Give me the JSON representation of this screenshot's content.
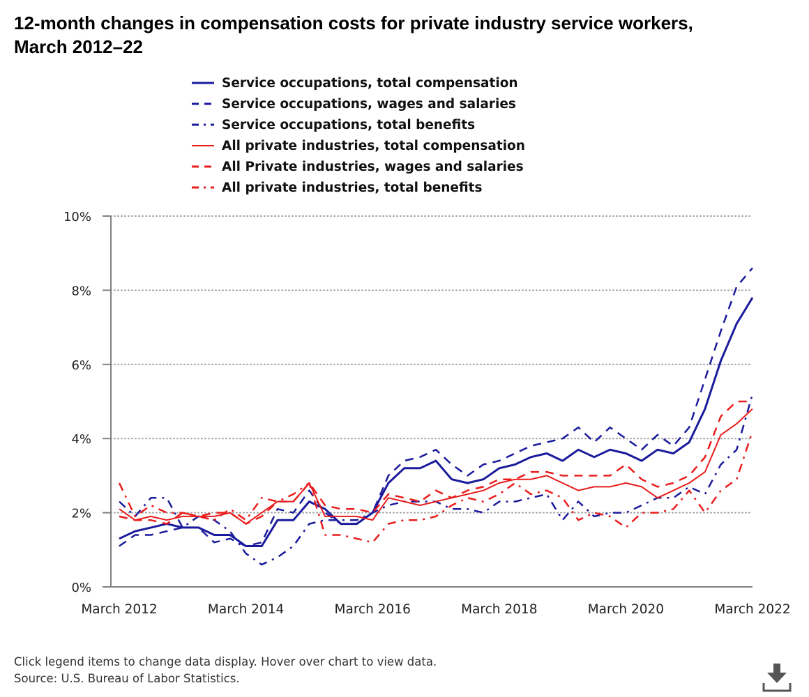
{
  "title": "12-month changes in compensation costs for private industry service workers, March 2012–22",
  "footer": {
    "note": "Click legend items to change data display. Hover over chart to view data.",
    "source": "Source: U.S. Bureau of Labor Statistics."
  },
  "icons": {
    "download": "download-icon"
  },
  "colors": {
    "navy": "#1a1a9c",
    "red": "#e81c1c",
    "axis": "#808080",
    "grid": "#a0a0a0"
  },
  "chart_data": {
    "type": "line",
    "title": "12-month changes in compensation costs for private industry service workers, March 2012–22",
    "xlabel": "",
    "ylabel": "",
    "x": [
      "Mar 2012",
      "Jun 2012",
      "Sep 2012",
      "Dec 2012",
      "Mar 2013",
      "Jun 2013",
      "Sep 2013",
      "Dec 2013",
      "Mar 2014",
      "Jun 2014",
      "Sep 2014",
      "Dec 2014",
      "Mar 2015",
      "Jun 2015",
      "Sep 2015",
      "Dec 2015",
      "Mar 2016",
      "Jun 2016",
      "Sep 2016",
      "Dec 2016",
      "Mar 2017",
      "Jun 2017",
      "Sep 2017",
      "Dec 2017",
      "Mar 2018",
      "Jun 2018",
      "Sep 2018",
      "Dec 2018",
      "Mar 2019",
      "Jun 2019",
      "Sep 2019",
      "Dec 2019",
      "Mar 2020",
      "Jun 2020",
      "Sep 2020",
      "Dec 2020",
      "Mar 2021",
      "Jun 2021",
      "Sep 2021",
      "Dec 2021",
      "Mar 2022"
    ],
    "x_tick_labels": [
      "March 2012",
      "March 2014",
      "March 2016",
      "March 2018",
      "March 2020",
      "March 2022"
    ],
    "y_tick_labels": [
      "0%",
      "2%",
      "4%",
      "6%",
      "8%",
      "10%"
    ],
    "ylim": [
      0,
      10
    ],
    "grid": "horizontal dotted",
    "legend_position": "top",
    "series": [
      {
        "name": "Service occupations, total compensation",
        "color": "#1a1a9c",
        "dash": "solid",
        "width": 3,
        "values": [
          1.3,
          1.5,
          1.6,
          1.7,
          1.6,
          1.6,
          1.4,
          1.4,
          1.1,
          1.1,
          1.8,
          1.8,
          2.3,
          2.1,
          1.7,
          1.7,
          2.0,
          2.8,
          3.2,
          3.2,
          3.4,
          2.9,
          2.8,
          2.9,
          3.2,
          3.3,
          3.5,
          3.6,
          3.4,
          3.7,
          3.5,
          3.7,
          3.6,
          3.4,
          3.7,
          3.6,
          3.9,
          4.8,
          6.1,
          7.1,
          7.8
        ]
      },
      {
        "name": "Service occupations, wages and salaries",
        "color": "#1a1a9c",
        "dash": "dashed",
        "width": 2.5,
        "values": [
          1.1,
          1.4,
          1.4,
          1.5,
          1.6,
          1.6,
          1.2,
          1.3,
          1.1,
          1.2,
          2.1,
          2.0,
          2.6,
          2.0,
          1.7,
          1.7,
          2.0,
          3.0,
          3.4,
          3.5,
          3.7,
          3.3,
          3.0,
          3.3,
          3.4,
          3.6,
          3.8,
          3.9,
          4.0,
          4.3,
          3.9,
          4.3,
          4.0,
          3.7,
          4.1,
          3.8,
          4.3,
          5.6,
          6.9,
          8.1,
          8.6
        ]
      },
      {
        "name": "Service occupations, total benefits",
        "color": "#1a1a9c",
        "dash": "dashdot",
        "width": 2.5,
        "values": [
          2.3,
          1.9,
          2.4,
          2.4,
          1.6,
          1.9,
          1.8,
          1.5,
          0.9,
          0.6,
          0.8,
          1.1,
          1.7,
          1.8,
          1.8,
          1.8,
          2.0,
          2.2,
          2.3,
          2.3,
          2.3,
          2.1,
          2.1,
          2.0,
          2.3,
          2.3,
          2.4,
          2.5,
          1.8,
          2.3,
          1.9,
          2.0,
          2.0,
          2.2,
          2.4,
          2.4,
          2.7,
          2.5,
          3.3,
          3.7,
          5.2
        ]
      },
      {
        "name": "All private industries, total compensation",
        "color": "#e81c1c",
        "dash": "solid",
        "width": 2,
        "values": [
          2.1,
          1.8,
          1.9,
          1.8,
          1.9,
          1.9,
          1.9,
          2.0,
          1.7,
          2.0,
          2.3,
          2.3,
          2.8,
          1.9,
          1.9,
          1.9,
          1.8,
          2.4,
          2.3,
          2.2,
          2.3,
          2.4,
          2.5,
          2.6,
          2.8,
          2.9,
          2.9,
          3.0,
          2.8,
          2.6,
          2.7,
          2.7,
          2.8,
          2.7,
          2.4,
          2.6,
          2.8,
          3.1,
          4.1,
          4.4,
          4.8
        ]
      },
      {
        "name": "All Private industries, wages and salaries",
        "color": "#e81c1c",
        "dash": "dashed",
        "width": 2.5,
        "values": [
          1.9,
          1.8,
          1.8,
          1.7,
          2.0,
          1.9,
          2.0,
          2.0,
          1.7,
          1.9,
          2.3,
          2.3,
          2.8,
          2.2,
          2.1,
          2.1,
          2.0,
          2.5,
          2.4,
          2.3,
          2.6,
          2.4,
          2.6,
          2.7,
          2.9,
          2.9,
          3.1,
          3.1,
          3.0,
          3.0,
          3.0,
          3.0,
          3.3,
          2.9,
          2.7,
          2.8,
          3.0,
          3.5,
          4.6,
          5.0,
          5.0
        ]
      },
      {
        "name": "All private industries, total benefits",
        "color": "#e81c1c",
        "dash": "dashdot",
        "width": 2.5,
        "values": [
          2.8,
          1.9,
          2.2,
          2.0,
          2.0,
          1.9,
          1.8,
          2.1,
          1.8,
          2.4,
          2.3,
          2.5,
          2.8,
          1.4,
          1.4,
          1.3,
          1.2,
          1.7,
          1.8,
          1.8,
          1.9,
          2.2,
          2.4,
          2.3,
          2.5,
          2.8,
          2.5,
          2.6,
          2.4,
          1.8,
          2.0,
          1.9,
          1.6,
          2.0,
          2.0,
          2.1,
          2.6,
          2.0,
          2.6,
          2.9,
          4.2
        ]
      }
    ]
  }
}
